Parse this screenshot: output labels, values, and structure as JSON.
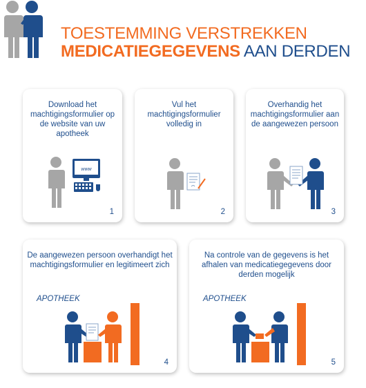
{
  "header": {
    "title_line1": "TOESTEMMING VERSTREKKEN",
    "title_bold": "MEDICATIEGEGEVENS",
    "title_rest": " AAN DERDEN",
    "icon": "two-persons-icon"
  },
  "colors": {
    "orange": "#f26b21",
    "blue": "#1f4e8c",
    "gray": "#a6a6a6"
  },
  "steps": [
    {
      "text": "Download het machtigingsformulier op de website van uw apotheek",
      "number": "1",
      "screen_label": "www",
      "icon": "person-computer-icon"
    },
    {
      "text": "Vul het machtigingsformulier volledig in",
      "number": "2",
      "icon": "person-form-icon"
    },
    {
      "text": "Overhandig het machtigingsformulier aan de aangewezen persoon",
      "number": "3",
      "icon": "handover-icon"
    },
    {
      "text": "De aangewezen persoon overhandigt het machtigingsformulier en legitimeert zich",
      "number": "4",
      "label": "APOTHEEK",
      "icon": "pharmacy-counter-icon"
    },
    {
      "text": "Na controle van de gegevens is het afhalen van medicatiegegevens door derden mogelijk",
      "number": "5",
      "label": "APOTHEEK",
      "icon": "pharmacy-pickup-icon"
    }
  ]
}
